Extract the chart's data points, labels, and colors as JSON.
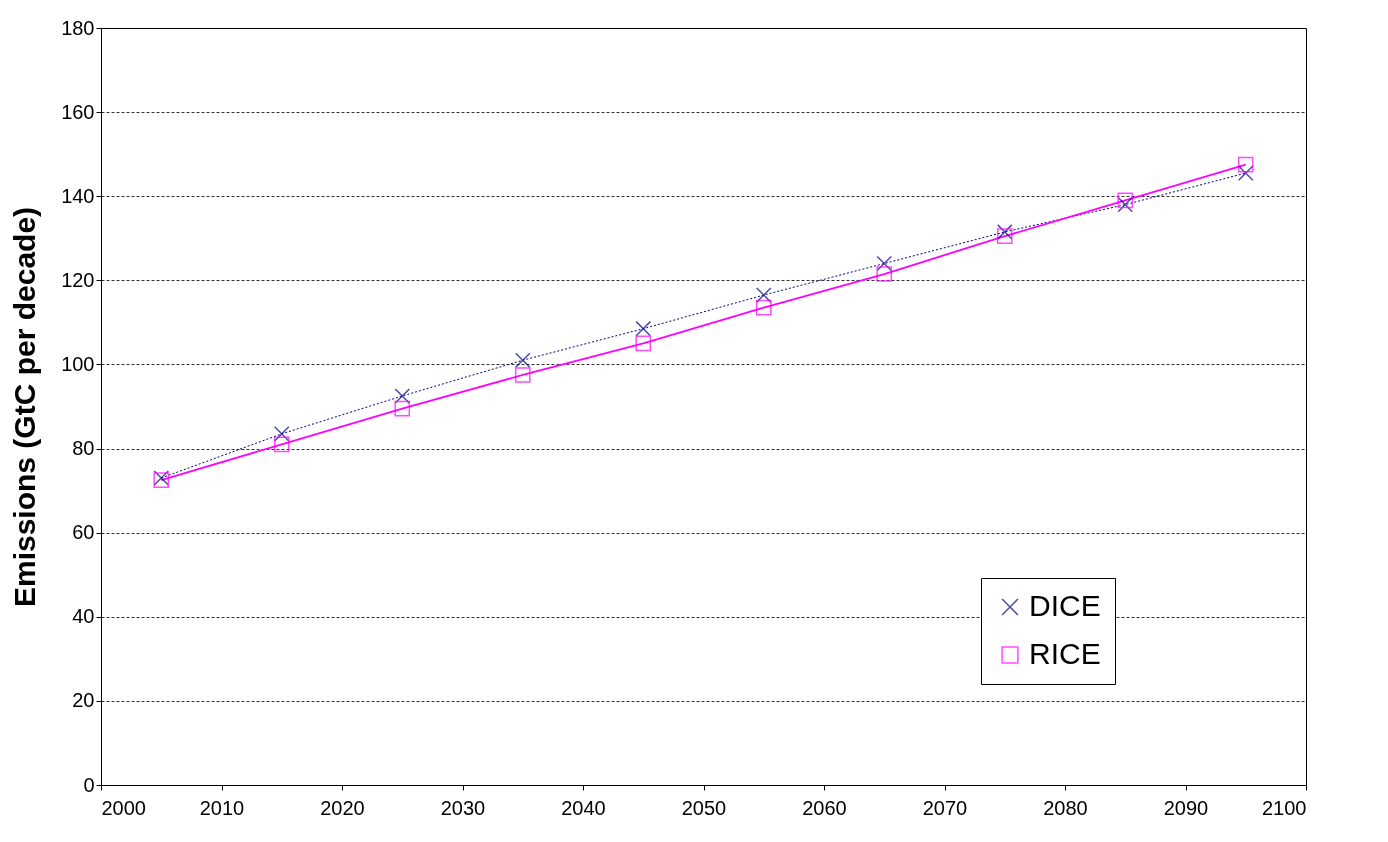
{
  "chart_data": {
    "type": "line",
    "ylabel": "Emissions (GtC per decade)",
    "x": [
      2005,
      2015,
      2025,
      2035,
      2045,
      2055,
      2065,
      2075,
      2085,
      2095
    ],
    "series": [
      {
        "name": "DICE",
        "color": "#000080",
        "marker": "cross",
        "line_style": "dotted",
        "values": [
          73,
          83.5,
          92.5,
          101,
          108.5,
          116.5,
          124,
          131.5,
          138,
          145.5
        ]
      },
      {
        "name": "RICE",
        "color": "#ff00ff",
        "marker": "square",
        "line_style": "solid",
        "values": [
          72.5,
          81,
          89.5,
          97.5,
          105,
          113.5,
          121.5,
          130.5,
          139,
          147.5
        ]
      }
    ],
    "xlim": [
      2000,
      2100
    ],
    "xticks": [
      2000,
      2010,
      2020,
      2030,
      2040,
      2050,
      2060,
      2070,
      2080,
      2090,
      2100
    ],
    "ylim": [
      0,
      180
    ],
    "yticks": [
      0,
      20,
      40,
      60,
      80,
      100,
      120,
      140,
      160,
      180
    ],
    "grid": "y",
    "legend": "bottom right"
  }
}
